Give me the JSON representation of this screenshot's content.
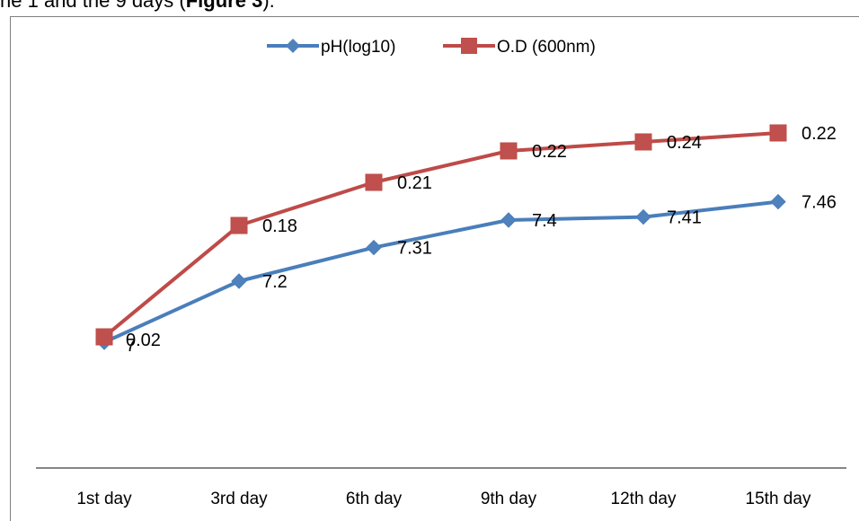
{
  "context_text": {
    "prefix": "he 1",
    "middle": " and the 9",
    "suffix": " days (",
    "figure_ref": "Figure 3",
    "end": ")."
  },
  "colors": {
    "ph": "#4a7ebb",
    "ph_marker": "#4f81bd",
    "od": "#be4b48",
    "od_marker": "#c0504d",
    "axis": "#868686"
  },
  "chart_data": {
    "type": "line",
    "categories": [
      "1st day",
      "3rd day",
      "6th day",
      "9th day",
      "12th day",
      "15th day"
    ],
    "series": [
      {
        "name": "pH(log10)",
        "marker": "diamond",
        "values": [
          7,
          7.2,
          7.31,
          7.4,
          7.41,
          7.46
        ],
        "labels": [
          "7",
          "7.2",
          "7.31",
          "7.4",
          "7.41",
          "7.46"
        ]
      },
      {
        "name": "O.D (600nm)",
        "marker": "square",
        "values": [
          0.02,
          0.18,
          0.21,
          0.22,
          0.24,
          0.22
        ],
        "labels": [
          "0.02",
          "0.18",
          "0.21",
          "0.22",
          "0.24",
          "0.22"
        ]
      }
    ],
    "legend_position": "top",
    "grid": false,
    "title": "",
    "xlabel": "",
    "ylabel": ""
  }
}
